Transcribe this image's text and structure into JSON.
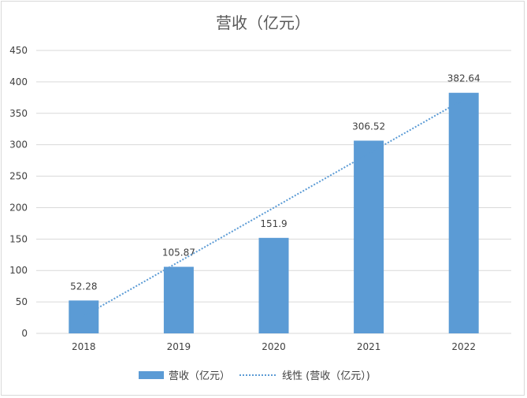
{
  "chart_data": {
    "type": "bar",
    "title": "营收（亿元）",
    "categories": [
      "2018",
      "2019",
      "2020",
      "2021",
      "2022"
    ],
    "series": [
      {
        "name": "营收（亿元）",
        "values": [
          52.28,
          105.87,
          151.9,
          306.52,
          382.64
        ]
      }
    ],
    "data_labels": [
      "52.28",
      "105.87",
      "151.9",
      "306.52",
      "382.64"
    ],
    "trendline": {
      "type": "linear",
      "name": "线性 (营收（亿元）)"
    },
    "ylim": [
      0,
      450
    ],
    "yticks": [
      0,
      50,
      100,
      150,
      200,
      250,
      300,
      350,
      400,
      450
    ],
    "grid": true,
    "legend": "bottom",
    "colors": {
      "bar": "#5b9bd5",
      "trend": "#5b9bd5",
      "grid": "#d9d9d9",
      "text": "#404040",
      "title": "#595959"
    }
  }
}
